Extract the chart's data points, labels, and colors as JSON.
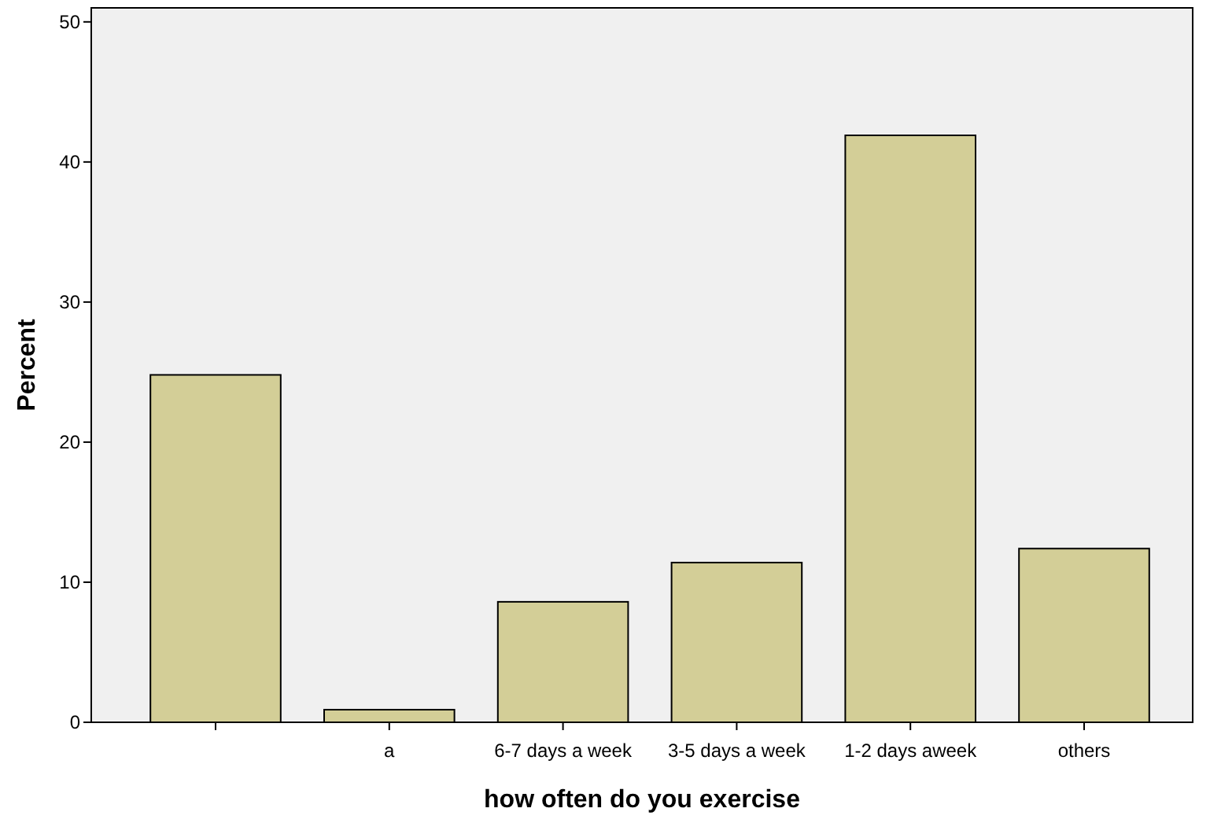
{
  "chart_data": {
    "type": "bar",
    "xlabel": "how often do you exercise",
    "ylabel": "Percent",
    "categories": [
      null,
      "a",
      "6-7 days a week",
      "3-5 days a week",
      "1-2 days aweek",
      "others"
    ],
    "values": [
      24.8,
      0.9,
      8.6,
      11.4,
      41.9,
      12.4
    ],
    "color": "#d3ce97",
    "ylim": [
      0,
      51
    ],
    "yticks": [
      0,
      10,
      20,
      30,
      40,
      50
    ],
    "grid": false
  }
}
